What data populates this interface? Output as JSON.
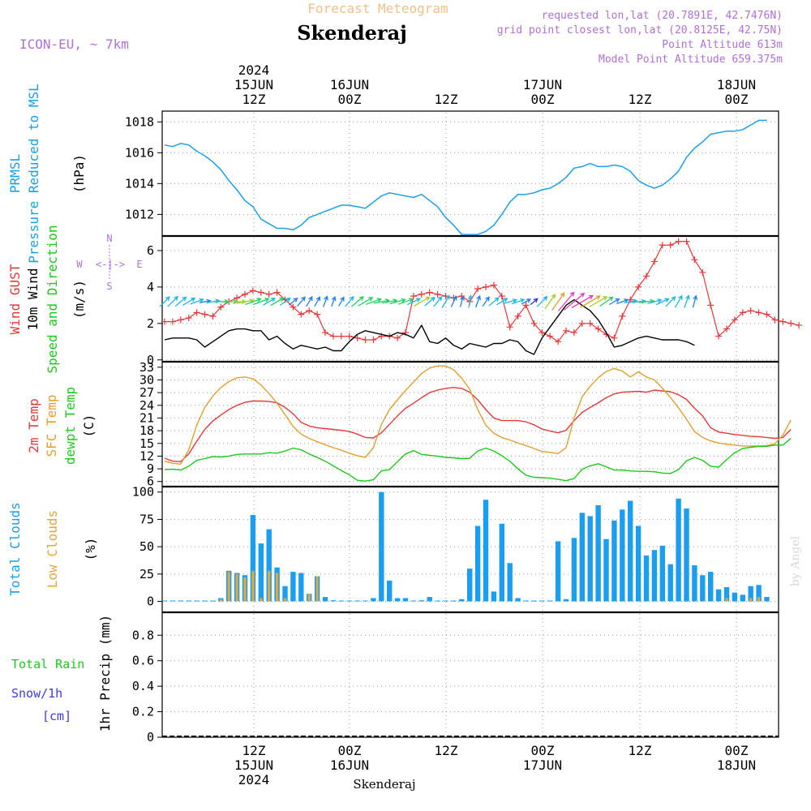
{
  "header": {
    "subtitle": "Forecast Meteogram",
    "title": "Skenderaj",
    "model": "ICON-EU, ~ 7km",
    "requested": "requested lon,lat (20.7891E, 42.7476N)",
    "gridpoint": "grid point closest lon,lat (20.8125E, 42.75N)",
    "point_alt": "Point Altitude 613m",
    "model_alt": "Model Point Altitude 659.375m",
    "footer_name": "Skenderaj",
    "credit": "by Angel"
  },
  "time_axis": {
    "top": [
      {
        "lines": [
          "2024",
          "15JUN",
          "12Z"
        ]
      },
      {
        "lines": [
          "16JUN",
          "00Z"
        ]
      },
      {
        "lines": [
          "12Z"
        ]
      },
      {
        "lines": [
          "17JUN",
          "00Z"
        ]
      },
      {
        "lines": [
          "12Z"
        ]
      },
      {
        "lines": [
          "18JUN",
          "00Z"
        ]
      }
    ],
    "bottom": [
      {
        "lines": [
          "12Z",
          "15JUN",
          "2024"
        ]
      },
      {
        "lines": [
          "00Z",
          "16JUN"
        ]
      },
      {
        "lines": [
          "12Z"
        ]
      },
      {
        "lines": [
          "00Z",
          "17JUN"
        ]
      },
      {
        "lines": [
          "12Z"
        ]
      },
      {
        "lines": [
          "00Z",
          "18JUN"
        ]
      }
    ],
    "gridlines": [
      "15JUN 12Z",
      "16JUN 00Z",
      "16JUN 12Z",
      "17JUN 00Z",
      "17JUN 12Z",
      "18JUN 00Z"
    ],
    "step_hours": 1
  },
  "panel_labels": {
    "pressure": [
      "PRMSL",
      "Pressure Reduced to MSL"
    ],
    "pressure_unit": "(hPa)",
    "wind": [
      "Wind GUST",
      "10m Wind",
      "Speed and Direction"
    ],
    "wind_unit": "(m/s)",
    "compass": {
      "n": "N",
      "s": "S",
      "w": "W",
      "e": "E",
      "arrow": "<-|->"
    },
    "temp": [
      "2m Temp",
      "SFC Temp",
      "dewpt Temp"
    ],
    "temp_unit": "(C)",
    "cloud": [
      "Total Clouds",
      "Low Clouds"
    ],
    "cloud_unit": "(%)",
    "precip_left": [
      "Total Rain",
      "Snow/1h",
      "[cm]"
    ],
    "precip_unit": "1hr Precip (mm)"
  },
  "colors": {
    "pressure": "#1aa0e6",
    "gust": "#e6383a",
    "wind": "#000000",
    "t2m": "#e6383a",
    "sfc": "#e0a030",
    "dewpt": "#1ec81e",
    "total_cloud": "#1c9ef0",
    "low_cloud": "#e0a840",
    "rain": "#1ec81e",
    "snow": "#3a3af0",
    "title": "#f0c088",
    "meta": "#b070d8"
  },
  "chart_data": [
    {
      "type": "line",
      "panel": "pressure",
      "ylabel": "(hPa)",
      "yticks": [
        1012,
        1014,
        1016,
        1018
      ],
      "ylim": [
        1010.6,
        1018.7
      ],
      "x_start_hour": 0,
      "series": [
        {
          "name": "PRMSL",
          "values": [
            1016.5,
            1016.4,
            1016.6,
            1016.5,
            1016.1,
            1015.8,
            1015.4,
            1014.9,
            1014.2,
            1013.6,
            1012.9,
            1012.5,
            1011.7,
            1011.4,
            1011.1,
            1011.1,
            1011.0,
            1011.3,
            1011.8,
            1012.0,
            1012.2,
            1012.4,
            1012.6,
            1012.6,
            1012.5,
            1012.4,
            1012.8,
            1013.2,
            1013.4,
            1013.3,
            1013.2,
            1013.1,
            1013.3,
            1012.9,
            1012.5,
            1011.8,
            1011.3,
            1010.7,
            1010.7,
            1010.7,
            1010.9,
            1011.3,
            1012.0,
            1012.8,
            1013.3,
            1013.3,
            1013.4,
            1013.6,
            1013.7,
            1014.0,
            1014.4,
            1015.0,
            1015.1,
            1015.3,
            1015.1,
            1015.1,
            1015.2,
            1015.1,
            1014.8,
            1014.2,
            1013.9,
            1013.7,
            1013.9,
            1014.3,
            1014.8,
            1015.7,
            1016.3,
            1016.7,
            1017.2,
            1017.3,
            1017.4,
            1017.4,
            1017.5,
            1017.8,
            1018.1,
            1018.1
          ]
        }
      ]
    },
    {
      "type": "line",
      "panel": "wind",
      "ylabel": "(m/s)",
      "yticks": [
        0,
        2,
        4,
        6
      ],
      "ylim": [
        -0.1,
        6.8
      ],
      "x_start_hour": 0,
      "series": [
        {
          "name": "Wind GUST",
          "values": [
            2.1,
            2.1,
            2.2,
            2.3,
            2.6,
            2.5,
            2.4,
            2.9,
            3.2,
            3.4,
            3.6,
            3.8,
            3.7,
            3.6,
            3.7,
            3.3,
            2.9,
            2.5,
            2.7,
            2.5,
            1.5,
            1.3,
            1.3,
            1.3,
            1.2,
            1.1,
            1.1,
            1.3,
            1.3,
            1.2,
            1.5,
            3.5,
            3.6,
            3.7,
            3.6,
            3.5,
            3.4,
            3.5,
            3.2,
            3.9,
            4.0,
            4.1,
            3.5,
            1.8,
            2.4,
            3.0,
            2.0,
            1.5,
            1.3,
            1.0,
            1.6,
            1.5,
            2.0,
            2.0,
            1.7,
            1.4,
            1.2,
            2.4,
            3.3,
            4.0,
            4.6,
            5.4,
            6.3,
            6.3,
            6.5,
            6.5,
            5.5,
            4.8,
            3.0,
            1.3,
            1.7,
            2.2,
            2.6,
            2.7,
            2.6,
            2.5,
            2.2,
            2.1,
            2.0,
            1.9
          ]
        },
        {
          "name": "10m Wind",
          "values": [
            1.1,
            1.2,
            1.2,
            1.2,
            1.1,
            0.7,
            1.0,
            1.3,
            1.6,
            1.7,
            1.7,
            1.6,
            1.6,
            1.1,
            1.3,
            0.9,
            0.6,
            0.8,
            0.7,
            0.6,
            0.7,
            0.5,
            0.5,
            1.0,
            1.4,
            1.6,
            1.5,
            1.4,
            1.3,
            1.5,
            1.4,
            1.2,
            1.9,
            1.0,
            0.9,
            1.2,
            0.8,
            0.6,
            0.9,
            0.8,
            0.7,
            0.9,
            0.9,
            1.1,
            1.0,
            0.5,
            0.3,
            1.2,
            1.8,
            2.4,
            3.0,
            3.3,
            3.0,
            2.7,
            2.2,
            1.5,
            0.7,
            0.8,
            1.0,
            1.2,
            1.3,
            1.2,
            1.1,
            1.1,
            1.1,
            1.0,
            0.8
          ]
        }
      ],
      "wind_dir_deg": [
        225,
        225,
        230,
        240,
        250,
        260,
        260,
        270,
        270,
        270,
        260,
        250,
        250,
        240,
        240,
        235,
        230,
        220,
        210,
        210,
        200,
        200,
        210,
        220,
        230,
        240,
        250,
        260,
        260,
        255,
        250,
        245,
        240,
        230,
        220,
        210,
        205,
        195,
        190,
        200,
        215,
        230,
        240,
        255,
        250,
        240,
        230,
        225,
        215,
        215,
        220,
        230,
        240,
        240,
        240,
        235,
        240,
        250,
        260,
        265,
        265,
        255,
        245,
        225,
        210,
        200,
        195,
        190,
        190
      ]
    },
    {
      "type": "line",
      "panel": "temperature",
      "ylabel": "(C)",
      "yticks": [
        6,
        9,
        12,
        15,
        18,
        21,
        24,
        27,
        30,
        33
      ],
      "ylim": [
        4.8,
        34.3
      ],
      "x_start_hour": 0,
      "series": [
        {
          "name": "2m Temp",
          "values": [
            11.5,
            10.8,
            10.7,
            12.5,
            15.5,
            18.3,
            20.3,
            21.7,
            23.0,
            24.0,
            24.7,
            25.0,
            25.0,
            24.9,
            24.6,
            23.5,
            22.0,
            20.0,
            19.1,
            18.7,
            18.5,
            18.3,
            18.1,
            17.8,
            17.2,
            16.4,
            16.3,
            17.5,
            19.5,
            21.5,
            23.3,
            24.5,
            25.8,
            27.0,
            27.6,
            28.0,
            28.2,
            28.0,
            27.1,
            25.3,
            23.0,
            21.0,
            20.4,
            20.4,
            20.4,
            20.1,
            19.4,
            18.4,
            17.9,
            17.5,
            18.1,
            20.4,
            22.3,
            23.5,
            24.6,
            25.8,
            26.7,
            27.1,
            27.2,
            27.3,
            27.1,
            27.6,
            27.4,
            27.2,
            26.5,
            25.4,
            23.3,
            21.5,
            18.7,
            17.7,
            17.4,
            17.1,
            16.9,
            16.7,
            16.6,
            16.4,
            16.2,
            16.4,
            18.3
          ]
        },
        {
          "name": "SFC Temp",
          "values": [
            10.8,
            10.3,
            10.1,
            13.5,
            19.3,
            23.5,
            26.2,
            28.2,
            29.6,
            30.5,
            30.7,
            30.3,
            28.8,
            26.8,
            24.5,
            21.8,
            19.0,
            17.2,
            16.2,
            15.4,
            14.7,
            14.0,
            13.4,
            12.7,
            12.1,
            11.7,
            14.0,
            19.5,
            23.0,
            25.3,
            27.5,
            29.5,
            31.5,
            32.8,
            33.3,
            33.3,
            32.4,
            30.4,
            27.8,
            23.0,
            19.3,
            17.4,
            16.4,
            15.8,
            15.1,
            14.5,
            13.8,
            13.1,
            12.9,
            12.6,
            14.0,
            21.0,
            26.0,
            28.5,
            30.5,
            32.0,
            32.7,
            32.1,
            30.7,
            31.9,
            30.7,
            30.0,
            28.0,
            25.9,
            23.4,
            20.7,
            17.8,
            16.4,
            15.6,
            15.1,
            14.8,
            14.6,
            14.4,
            14.4,
            14.4,
            14.5,
            14.9,
            17.0,
            20.5
          ]
        },
        {
          "name": "dewpt Temp",
          "values": [
            8.8,
            8.9,
            8.7,
            9.6,
            11.0,
            11.4,
            11.9,
            11.8,
            12.0,
            12.4,
            12.5,
            12.5,
            12.5,
            12.8,
            12.7,
            13.2,
            13.9,
            13.5,
            12.5,
            11.7,
            10.8,
            9.7,
            8.6,
            7.6,
            6.3,
            6.1,
            6.4,
            8.5,
            8.8,
            10.7,
            12.5,
            13.3,
            12.4,
            12.2,
            12.0,
            11.7,
            11.6,
            11.4,
            11.5,
            13.2,
            13.9,
            13.2,
            12.1,
            10.8,
            9.0,
            7.5,
            7.0,
            6.9,
            6.8,
            6.5,
            6.2,
            6.7,
            8.9,
            9.7,
            10.2,
            9.5,
            8.7,
            8.7,
            8.5,
            8.4,
            8.4,
            8.3,
            8.0,
            7.9,
            8.8,
            10.9,
            11.7,
            11.0,
            9.6,
            9.4,
            11.2,
            12.8,
            13.8,
            14.1,
            14.3,
            14.3,
            14.6,
            14.6,
            16.2
          ]
        }
      ]
    },
    {
      "type": "bar",
      "panel": "clouds",
      "ylabel": "(%)",
      "yticks": [
        0,
        25,
        50,
        75,
        100
      ],
      "ylim": [
        -10,
        105
      ],
      "x_start_hour": 0,
      "series": [
        {
          "name": "Total Clouds",
          "values": [
            0,
            0,
            0,
            0,
            0,
            0,
            0,
            3,
            28,
            26,
            24,
            79,
            53,
            66,
            31,
            14,
            27,
            26,
            7,
            23,
            4,
            1,
            0,
            0,
            0,
            0,
            3,
            100,
            19,
            3,
            3,
            0,
            1,
            4,
            0,
            0,
            0,
            2,
            30,
            69,
            93,
            9,
            71,
            35,
            3,
            0,
            0,
            0,
            0,
            55,
            2,
            58,
            81,
            78,
            88,
            57,
            74,
            84,
            92,
            69,
            42,
            47,
            51,
            34,
            94,
            85,
            33,
            24,
            27,
            11,
            13,
            8,
            6,
            14,
            15,
            4
          ]
        },
        {
          "name": "Low Clouds",
          "values": [
            0,
            0,
            0,
            0,
            0,
            0,
            0,
            2,
            27,
            25,
            22,
            28,
            3,
            28,
            26,
            3,
            0,
            0,
            7,
            23,
            0,
            0,
            0,
            0,
            0,
            0,
            0,
            0,
            0,
            0,
            0,
            0,
            0,
            0,
            0,
            0,
            0,
            0,
            0,
            0,
            0,
            0,
            0,
            0,
            0,
            0,
            0,
            0,
            0,
            0,
            0,
            0,
            0,
            0,
            0,
            0,
            0,
            0,
            0,
            0,
            0,
            0,
            0,
            0,
            0,
            0,
            0,
            0,
            0,
            0,
            3,
            0,
            0,
            3,
            4,
            0
          ]
        }
      ]
    },
    {
      "type": "bar",
      "panel": "precipitation",
      "ylabel": "1hr Precip (mm)",
      "yticks": [
        0,
        0.2,
        0.4,
        0.6,
        0.8
      ],
      "ylim": [
        0,
        0.98
      ],
      "x_start_hour": 0,
      "series": [
        {
          "name": "Total Rain",
          "values": [
            0,
            0,
            0,
            0,
            0,
            0,
            0,
            0,
            0,
            0,
            0,
            0,
            0,
            0,
            0,
            0,
            0,
            0,
            0,
            0,
            0,
            0,
            0,
            0,
            0,
            0,
            0,
            0,
            0,
            0,
            0,
            0,
            0,
            0,
            0,
            0,
            0,
            0,
            0,
            0,
            0,
            0,
            0,
            0,
            0,
            0,
            0,
            0,
            0,
            0,
            0,
            0,
            0,
            0,
            0,
            0,
            0,
            0,
            0,
            0,
            0,
            0,
            0,
            0,
            0,
            0,
            0,
            0,
            0,
            0,
            0,
            0,
            0,
            0,
            0,
            0
          ]
        },
        {
          "name": "Snow/1h",
          "values": [
            0,
            0,
            0,
            0,
            0,
            0,
            0,
            0,
            0,
            0,
            0,
            0,
            0,
            0,
            0,
            0,
            0,
            0,
            0,
            0,
            0,
            0,
            0,
            0,
            0,
            0,
            0,
            0,
            0,
            0,
            0,
            0,
            0,
            0,
            0,
            0,
            0,
            0,
            0,
            0,
            0,
            0,
            0,
            0,
            0,
            0,
            0,
            0,
            0,
            0,
            0,
            0,
            0,
            0,
            0,
            0,
            0,
            0,
            0,
            0,
            0,
            0,
            0,
            0,
            0,
            0,
            0,
            0,
            0,
            0,
            0,
            0,
            0,
            0,
            0,
            0
          ]
        }
      ]
    }
  ]
}
